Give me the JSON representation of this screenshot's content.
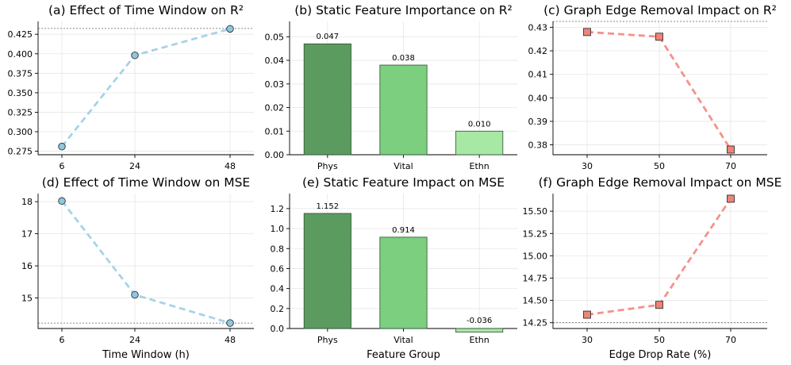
{
  "chart_data": [
    {
      "type": "line",
      "title": "(a) Effect of Time Window on R²",
      "xlabel": "",
      "ylabel": "",
      "categories": [
        "6",
        "24",
        "48"
      ],
      "x": [
        6,
        24,
        48
      ],
      "values": [
        0.281,
        0.398,
        0.432
      ],
      "ylim": [
        0.2705,
        0.4415
      ],
      "yticks": [
        "0.275",
        "0.300",
        "0.325",
        "0.350",
        "0.375",
        "0.400",
        "0.425"
      ],
      "ytick_values": [
        0.275,
        0.3,
        0.325,
        0.35,
        0.375,
        0.4,
        0.425
      ],
      "reference_line": 0.4325,
      "marker": "circle",
      "line_color": "#a6d3e8",
      "marker_color": "#8ec7e0",
      "grid": true
    },
    {
      "type": "bar",
      "title": "(b) Static Feature Importance on R²",
      "xlabel": "",
      "ylabel": "",
      "categories": [
        "Phys",
        "Vital",
        "Ethn"
      ],
      "values": [
        0.047,
        0.038,
        0.01
      ],
      "data_labels": [
        "0.047",
        "0.038",
        "0.010"
      ],
      "ylim": [
        0,
        0.0565
      ],
      "yticks": [
        "0.00",
        "0.01",
        "0.02",
        "0.03",
        "0.04",
        "0.05"
      ],
      "ytick_values": [
        0,
        0.01,
        0.02,
        0.03,
        0.04,
        0.05
      ],
      "colors": [
        "#5b9b5f",
        "#7bcf7f",
        "#a6e8a4"
      ],
      "grid": true
    },
    {
      "type": "line",
      "title": "(c) Graph Edge Removal Impact on R²",
      "xlabel": "",
      "ylabel": "",
      "categories": [
        "30",
        "50",
        "70"
      ],
      "x": [
        30,
        50,
        70
      ],
      "values": [
        0.428,
        0.426,
        0.378
      ],
      "ylim": [
        0.3758,
        0.4325
      ],
      "yticks": [
        "0.38",
        "0.39",
        "0.40",
        "0.41",
        "0.42",
        "0.43"
      ],
      "ytick_values": [
        0.38,
        0.39,
        0.4,
        0.41,
        0.42,
        0.43
      ],
      "reference_line": 0.4325,
      "marker": "square",
      "line_color": "#f4928a",
      "marker_color": "#ee8378",
      "grid": true
    },
    {
      "type": "line",
      "title": "(d) Effect of Time Window on MSE",
      "xlabel": "Time Window (h)",
      "ylabel": "",
      "categories": [
        "6",
        "24",
        "48"
      ],
      "x": [
        6,
        24,
        48
      ],
      "values": [
        18.02,
        15.1,
        14.22
      ],
      "ylim": [
        14.05,
        18.25
      ],
      "yticks": [
        "15",
        "16",
        "17",
        "18"
      ],
      "ytick_values": [
        15,
        16,
        17,
        18
      ],
      "reference_line": 14.22,
      "marker": "circle",
      "line_color": "#a6d3e8",
      "marker_color": "#8ec7e0",
      "grid": true
    },
    {
      "type": "bar",
      "title": "(e) Static Feature Impact on MSE",
      "xlabel": "Feature Group",
      "ylabel": "",
      "categories": [
        "Phys",
        "Vital",
        "Ethn"
      ],
      "values": [
        1.152,
        0.914,
        -0.036
      ],
      "data_labels": [
        "1.152",
        "0.914",
        "-0.036"
      ],
      "ylim": [
        0,
        1.35
      ],
      "yticks": [
        "0.0",
        "0.2",
        "0.4",
        "0.6",
        "0.8",
        "1.0",
        "1.2"
      ],
      "ytick_values": [
        0,
        0.2,
        0.4,
        0.6,
        0.8,
        1.0,
        1.2
      ],
      "colors": [
        "#5b9b5f",
        "#7bcf7f",
        "#a6e8a4"
      ],
      "grid": true
    },
    {
      "type": "line",
      "title": "(f) Graph Edge Removal Impact on MSE",
      "xlabel": "Edge Drop Rate (%)",
      "ylabel": "",
      "categories": [
        "30",
        "50",
        "70"
      ],
      "x": [
        30,
        50,
        70
      ],
      "values": [
        14.34,
        14.45,
        15.64
      ],
      "ylim": [
        14.185,
        15.697
      ],
      "yticks": [
        "14.25",
        "14.50",
        "14.75",
        "15.00",
        "15.25",
        "15.50"
      ],
      "ytick_values": [
        14.25,
        14.5,
        14.75,
        15.0,
        15.25,
        15.5
      ],
      "reference_line": 14.25,
      "marker": "square",
      "line_color": "#f4928a",
      "marker_color": "#ee8378",
      "grid": true
    }
  ]
}
